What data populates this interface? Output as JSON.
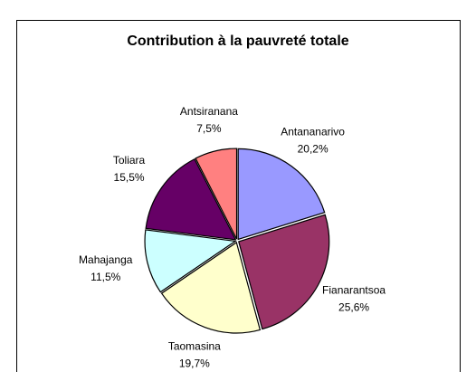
{
  "chart_data": {
    "type": "pie",
    "title": "Contribution à la pauvreté totale",
    "categories": [
      "Antananarivo",
      "Fianarantsoa",
      "Taomasina",
      "Mahajanga",
      "Toliara",
      "Antsiranana"
    ],
    "values": [
      20.2,
      25.6,
      19.7,
      11.5,
      15.5,
      7.5
    ],
    "value_labels": [
      "20,2%",
      "25,6%",
      "19,7%",
      "11,5%",
      "15,5%",
      "7,5%"
    ],
    "colors": [
      "#9999ff",
      "#993366",
      "#ffffcc",
      "#ccffff",
      "#660066",
      "#ff8080"
    ]
  }
}
